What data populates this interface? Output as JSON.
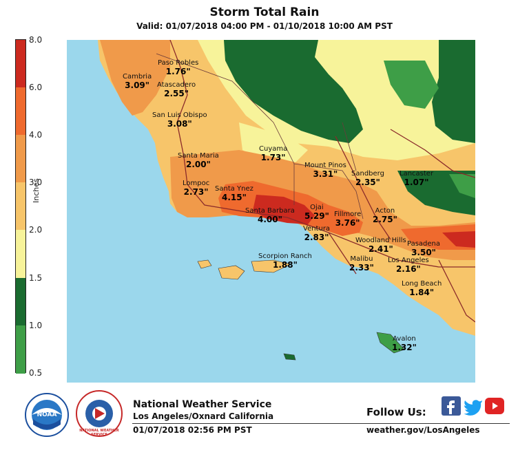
{
  "header": {
    "title": "Storm Total Rain",
    "subtitle": "Valid: 01/07/2018 04:00 PM - 01/10/2018 10:00 AM PST"
  },
  "legend": {
    "title": "Inches",
    "ticks": [
      "8.0",
      "6.0",
      "4.0",
      "3.0",
      "2.0",
      "1.5",
      "1.0",
      "0.5"
    ],
    "bands": [
      {
        "range": "0.5-1.0",
        "color": "#3e9e47"
      },
      {
        "range": "1.0-1.5",
        "color": "#1a6b30"
      },
      {
        "range": "1.5-2.0",
        "color": "#f7f39a"
      },
      {
        "range": "2.0-3.0",
        "color": "#f7c56a"
      },
      {
        "range": "3.0-4.0",
        "color": "#f09a4a"
      },
      {
        "range": "4.0-6.0",
        "color": "#ef6a2e"
      },
      {
        "range": "6.0-8.0",
        "color": "#cc2a1f"
      }
    ]
  },
  "colors": {
    "ocean": "#9bd7ec",
    "dark_green": "#1a6b30",
    "green": "#3e9e47",
    "yellow": "#f7f39a",
    "light_orange": "#f7c56a",
    "orange": "#f09a4a",
    "dark_orange": "#ef6a2e",
    "red": "#cc2a1f",
    "roads": "#8a2a2a"
  },
  "stations": [
    {
      "name": "Paso Robles",
      "value": "1.76\""
    },
    {
      "name": "Cambria",
      "value": "3.09\""
    },
    {
      "name": "Atascadero",
      "value": "2.55\""
    },
    {
      "name": "San Luis Obispo",
      "value": "3.08\""
    },
    {
      "name": "Santa Maria",
      "value": "2.00\""
    },
    {
      "name": "Cuyama",
      "value": "1.73\""
    },
    {
      "name": "Mount Pinos",
      "value": "3.31\""
    },
    {
      "name": "Sandberg",
      "value": "2.35\""
    },
    {
      "name": "Lancaster",
      "value": "1.07\""
    },
    {
      "name": "Lompoc",
      "value": "2.73\""
    },
    {
      "name": "Santa Ynez",
      "value": "4.15\""
    },
    {
      "name": "Santa Barbara",
      "value": "4.00\""
    },
    {
      "name": "Ojai",
      "value": "5.29\""
    },
    {
      "name": "Fillmore",
      "value": "3.76\""
    },
    {
      "name": "Acton",
      "value": "2.75\""
    },
    {
      "name": "Ventura",
      "value": "2.83\""
    },
    {
      "name": "Woodland Hills",
      "value": "2.41\""
    },
    {
      "name": "Pasadena",
      "value": "3.50\""
    },
    {
      "name": "Scorpion Ranch",
      "value": "1.88\""
    },
    {
      "name": "Malibu",
      "value": "2.33\""
    },
    {
      "name": "Los Angeles",
      "value": "2.16\""
    },
    {
      "name": "Long Beach",
      "value": "1.84\""
    },
    {
      "name": "Avalon",
      "value": "1.32\""
    }
  ],
  "footer": {
    "org": "National Weather Service",
    "location": "Los Angeles/Oxnard California",
    "timestamp": "01/07/2018 02:56 PM PST",
    "follow": "Follow Us:",
    "website": "weather.gov/LosAngeles",
    "noaa_logo_text": "NOAA",
    "nws_logo_text": "NATIONAL WEATHER SERVICE"
  },
  "social": [
    "facebook-icon",
    "twitter-icon",
    "youtube-icon"
  ]
}
